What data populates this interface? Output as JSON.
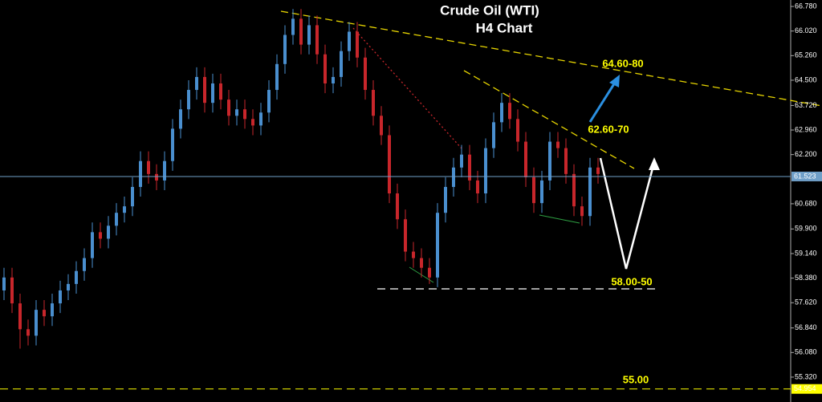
{
  "chart_data": {
    "type": "candlestick",
    "title": "Crude Oil (WTI)",
    "subtitle": "H4 Chart",
    "up_color": "#4a8fcf",
    "down_color": "#c8262b",
    "open": [
      58.0,
      58.4,
      57.6,
      56.8,
      56.6,
      57.4,
      57.2,
      57.6,
      58.0,
      58.2,
      58.6,
      59.0,
      59.8,
      59.6,
      60.0,
      60.4,
      60.6,
      61.2,
      62.0,
      61.6,
      61.4,
      62.0,
      63.0,
      63.6,
      64.2,
      64.6,
      63.8,
      64.4,
      63.9,
      63.4,
      63.6,
      63.3,
      63.1,
      63.5,
      64.2,
      65.0,
      65.9,
      66.4,
      65.6,
      66.2,
      65.3,
      64.4,
      64.6,
      65.4,
      66.0,
      65.2,
      64.2,
      63.4,
      62.8,
      61.0,
      60.2,
      59.2,
      59.0,
      58.7,
      58.4,
      60.4,
      61.2,
      61.8,
      62.2,
      61.4,
      61.0,
      62.4,
      63.2,
      63.8,
      63.3,
      62.6,
      61.5,
      60.7,
      61.4,
      62.6,
      62.4,
      61.6,
      60.6,
      60.3,
      61.8
    ],
    "high": [
      58.7,
      58.7,
      57.9,
      57.1,
      57.7,
      57.7,
      57.9,
      58.3,
      58.5,
      58.9,
      59.3,
      60.1,
      60.1,
      60.3,
      60.7,
      60.9,
      61.5,
      62.3,
      62.3,
      61.9,
      62.3,
      63.3,
      63.9,
      64.5,
      64.9,
      64.9,
      64.7,
      64.7,
      64.2,
      63.9,
      63.9,
      63.6,
      63.8,
      64.5,
      65.3,
      66.2,
      66.7,
      66.7,
      66.5,
      66.5,
      65.6,
      64.9,
      65.7,
      66.3,
      66.3,
      65.5,
      64.5,
      63.7,
      63.1,
      61.3,
      60.5,
      59.5,
      59.3,
      59.0,
      60.7,
      61.5,
      62.1,
      62.5,
      62.5,
      61.7,
      62.7,
      63.5,
      64.1,
      64.1,
      63.6,
      62.9,
      61.8,
      61.7,
      62.9,
      62.9,
      62.7,
      61.9,
      60.9,
      62.1,
      62.1
    ],
    "low": [
      57.7,
      57.3,
      56.2,
      56.3,
      56.3,
      56.9,
      56.9,
      57.3,
      57.7,
      57.9,
      58.3,
      58.7,
      59.3,
      59.3,
      59.7,
      60.1,
      60.3,
      60.9,
      61.3,
      61.1,
      61.1,
      61.7,
      62.7,
      63.3,
      63.9,
      63.5,
      63.5,
      63.6,
      63.1,
      63.1,
      63.0,
      62.8,
      62.8,
      63.2,
      63.9,
      64.7,
      65.6,
      65.3,
      65.3,
      65.0,
      64.1,
      64.1,
      64.3,
      65.1,
      64.9,
      63.9,
      63.1,
      62.5,
      60.7,
      59.9,
      58.9,
      58.7,
      58.4,
      58.2,
      58.1,
      60.1,
      60.9,
      61.5,
      61.1,
      60.7,
      60.7,
      62.1,
      62.9,
      63.0,
      62.3,
      61.2,
      60.4,
      60.4,
      61.1,
      62.1,
      61.3,
      60.3,
      60.0,
      60.0,
      61.3
    ],
    "close": [
      58.4,
      57.6,
      56.8,
      56.6,
      57.4,
      57.2,
      57.6,
      58.0,
      58.2,
      58.6,
      59.0,
      59.8,
      59.6,
      60.0,
      60.4,
      60.6,
      61.2,
      62.0,
      61.6,
      61.4,
      62.0,
      63.0,
      63.6,
      64.2,
      64.6,
      63.8,
      64.4,
      63.9,
      63.4,
      63.6,
      63.3,
      63.1,
      63.5,
      64.2,
      65.0,
      65.9,
      66.4,
      65.6,
      66.2,
      65.3,
      64.4,
      64.6,
      65.4,
      66.0,
      65.2,
      64.2,
      63.4,
      62.8,
      61.0,
      60.2,
      59.2,
      59.0,
      58.7,
      58.4,
      60.4,
      61.2,
      61.8,
      62.2,
      61.4,
      61.0,
      62.4,
      63.2,
      63.8,
      63.3,
      62.6,
      61.5,
      60.7,
      61.4,
      62.6,
      62.4,
      61.6,
      60.6,
      60.3,
      61.8,
      61.6
    ],
    "ylim": [
      54.55,
      66.98
    ],
    "yticks": [
      {
        "value": 66.78,
        "label": "66.780"
      },
      {
        "value": 66.02,
        "label": "66.020"
      },
      {
        "value": 65.26,
        "label": "65.260"
      },
      {
        "value": 64.5,
        "label": "64.500"
      },
      {
        "value": 63.72,
        "label": "63.720"
      },
      {
        "value": 62.96,
        "label": "62.960"
      },
      {
        "value": 62.2,
        "label": "62.200"
      },
      {
        "value": 60.68,
        "label": "60.680"
      },
      {
        "value": 59.9,
        "label": "59.900"
      },
      {
        "value": 59.14,
        "label": "59.140"
      },
      {
        "value": 58.38,
        "label": "58.380"
      },
      {
        "value": 57.62,
        "label": "57.620"
      },
      {
        "value": 56.84,
        "label": "56.840"
      },
      {
        "value": 56.08,
        "label": "56.080"
      },
      {
        "value": 55.32,
        "label": "55.320"
      }
    ],
    "price_lines": [
      {
        "value": 61.523,
        "color": "#6f9fc8"
      },
      {
        "value": 54.954,
        "color": "#ffff00"
      }
    ],
    "annotations": [
      "64.60-80",
      "62.60-70",
      "58.00-50",
      "55.00"
    ]
  }
}
